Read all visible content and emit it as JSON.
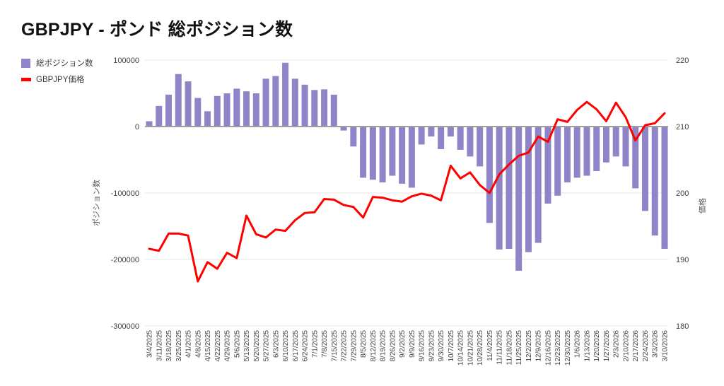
{
  "title": "GBPJPY - ポンド 総ポジション数",
  "legend": [
    {
      "label": "総ポジション数",
      "color": "#8f84c8",
      "type": "bar"
    },
    {
      "label": "GBPJPY価格",
      "color": "#ff0000",
      "type": "line"
    }
  ],
  "chart_data": {
    "type": "combo",
    "categories": [
      "3/4/2025",
      "3/11/2025",
      "3/18/2025",
      "3/25/2025",
      "4/1/2025",
      "4/8/2025",
      "4/15/2025",
      "4/22/2025",
      "4/29/2025",
      "5/6/2025",
      "5/13/2025",
      "5/20/2025",
      "5/27/2025",
      "6/3/2025",
      "6/10/2025",
      "6/17/2025",
      "6/24/2025",
      "7/1/2025",
      "7/8/2025",
      "7/15/2025",
      "7/22/2025",
      "7/29/2025",
      "8/5/2025",
      "8/12/2025",
      "8/19/2025",
      "8/26/2025",
      "9/2/2025",
      "9/9/2025",
      "9/16/2025",
      "9/23/2025",
      "9/30/2025",
      "10/7/2025",
      "10/14/2025",
      "10/21/2025",
      "10/28/2025",
      "11/4/2025",
      "11/11/2025",
      "11/18/2025",
      "11/25/2025",
      "12/2/2025",
      "12/9/2025",
      "12/16/2025",
      "12/23/2025",
      "12/30/2025",
      "1/6/2026",
      "1/13/2026",
      "1/20/2026",
      "1/27/2026",
      "2/3/2026",
      "2/10/2026",
      "2/17/2026",
      "2/24/2026",
      "3/3/2026",
      "3/10/2026"
    ],
    "series": [
      {
        "name": "総ポジション数",
        "type": "bar",
        "axis": "left",
        "color": "#8f84c8",
        "values": [
          8000,
          31000,
          48000,
          79000,
          68000,
          43000,
          23000,
          46000,
          50000,
          57000,
          53000,
          50000,
          72000,
          76000,
          96000,
          72000,
          63000,
          55000,
          56000,
          48000,
          -6000,
          -30000,
          -77000,
          -80000,
          -84000,
          -74000,
          -86000,
          -92000,
          -27000,
          -15000,
          -34000,
          -15000,
          -35000,
          -45000,
          -60000,
          -145000,
          -185000,
          -184000,
          -217000,
          -189000,
          -175000,
          -116000,
          -104000,
          -84000,
          -77000,
          -74000,
          -67000,
          -54000,
          -45000,
          -60000,
          -93000,
          -127000,
          -164000,
          -184000
        ]
      },
      {
        "name": "GBPJPY価格",
        "type": "line",
        "axis": "right",
        "color": "#ff0000",
        "values": [
          191.6,
          191.3,
          193.9,
          193.9,
          193.6,
          186.7,
          189.6,
          188.6,
          191.0,
          190.2,
          196.6,
          193.8,
          193.3,
          194.5,
          194.3,
          195.9,
          197.0,
          197.1,
          199.1,
          199.0,
          198.2,
          197.9,
          196.3,
          199.4,
          199.3,
          198.9,
          198.7,
          199.5,
          199.9,
          199.6,
          198.9,
          204.1,
          202.2,
          203.1,
          201.2,
          200.0,
          202.8,
          204.3,
          205.6,
          206.1,
          208.5,
          207.7,
          211.1,
          210.7,
          212.5,
          213.7,
          212.6,
          210.8,
          213.6,
          211.4,
          207.9,
          210.2,
          210.5,
          212.0
        ]
      }
    ],
    "left_axis": {
      "title": "ポジション数",
      "min": -300000,
      "max": 100000,
      "ticks": [
        100000,
        0,
        -100000,
        -200000,
        -300000
      ],
      "tick_labels": [
        "100000",
        "0",
        "-100000",
        "-200000",
        "-300000"
      ]
    },
    "right_axis": {
      "title": "価格",
      "min": 180,
      "max": 220,
      "ticks": [
        220,
        210,
        200,
        190,
        180
      ],
      "tick_labels": [
        "220",
        "210",
        "200",
        "190",
        "180"
      ]
    },
    "grid": {
      "line_color": "#e6e6e6",
      "zero_line_color": "#9e9e9e"
    },
    "legend_position": "top-left"
  }
}
